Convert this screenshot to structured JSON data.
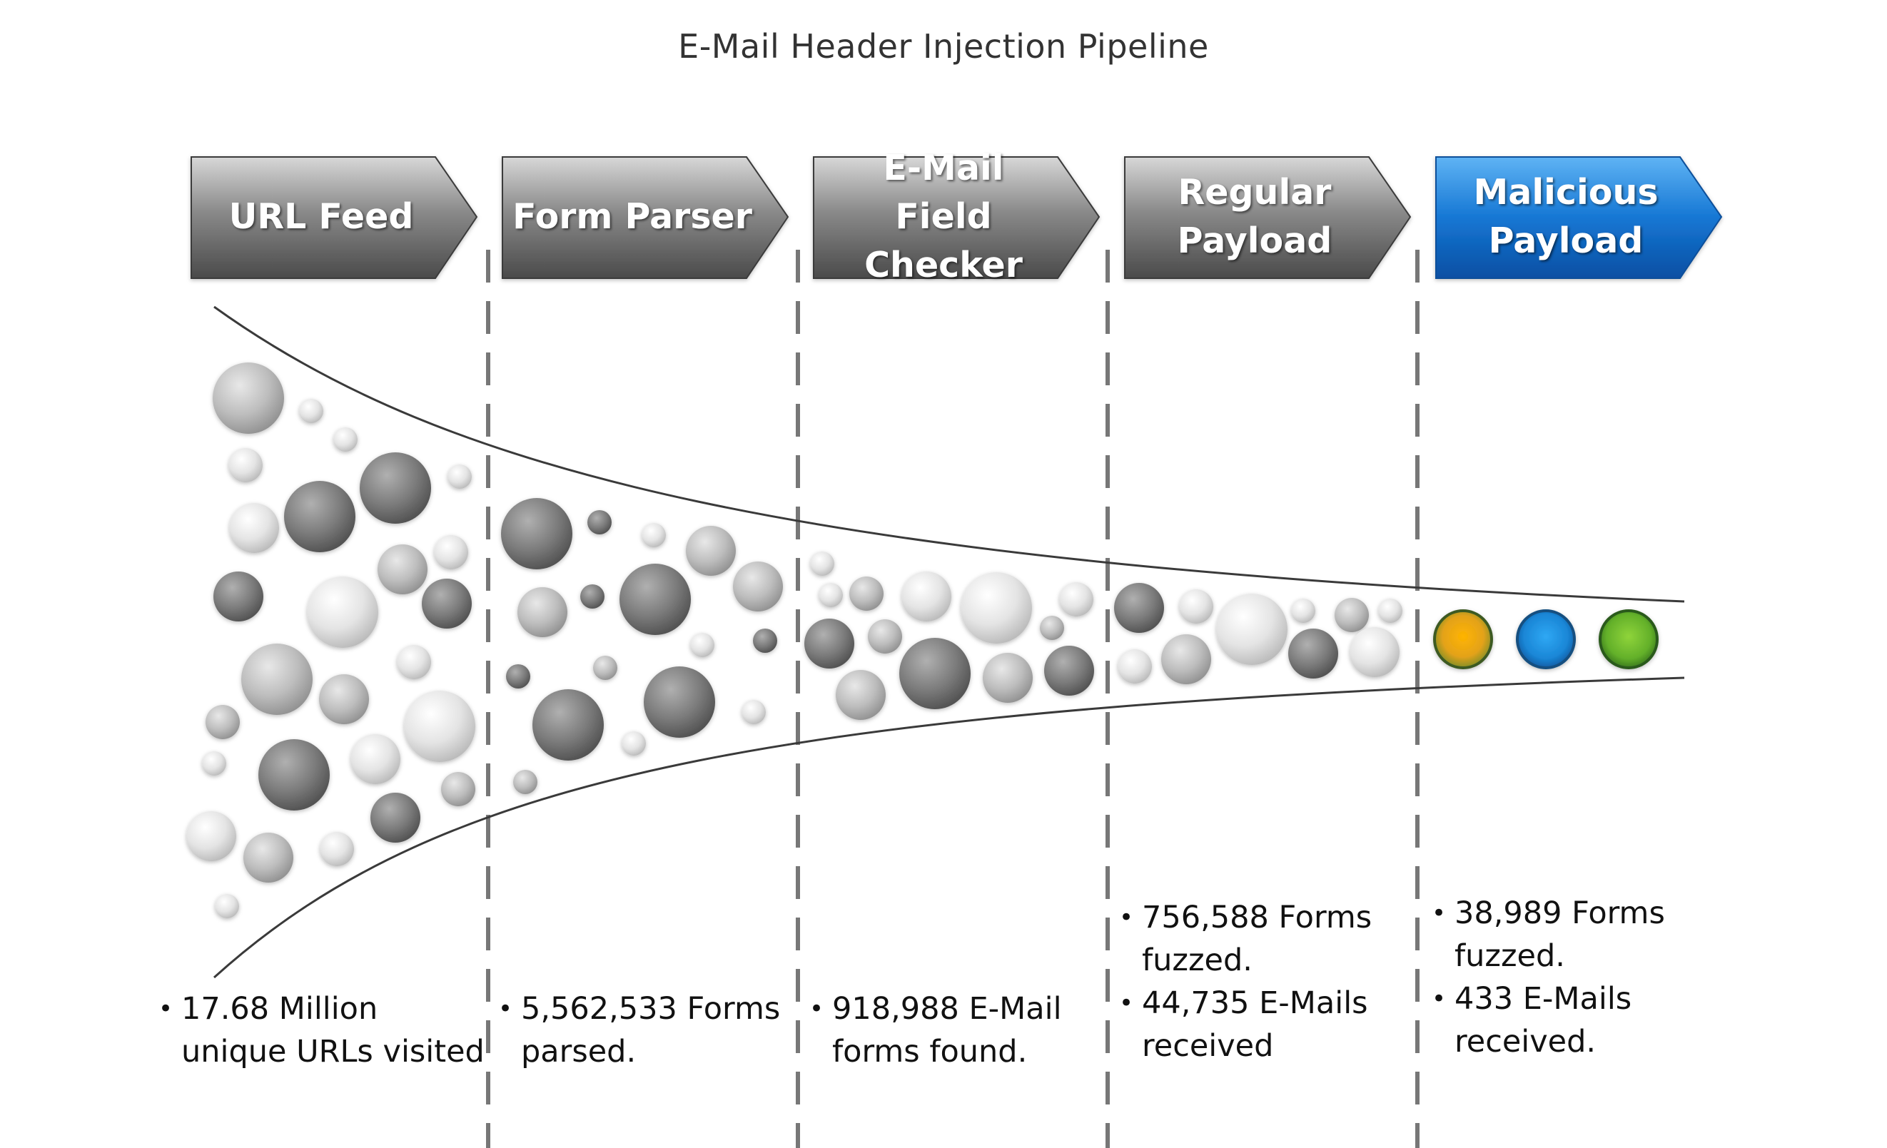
{
  "title": "E-Mail Header Injection Pipeline",
  "stages": [
    {
      "label": "URL Feed",
      "color": "#6b6b6b",
      "stats": [
        "17.68 Million unique URLs visited"
      ]
    },
    {
      "label": "Form Parser",
      "color": "#6b6b6b",
      "stats": [
        "5,562,533 Forms parsed."
      ]
    },
    {
      "label": "E-Mail Field Checker",
      "color": "#6b6b6b",
      "stats": [
        "918,988 E-Mail forms found."
      ]
    },
    {
      "label": "Regular Payload",
      "color": "#6b6b6b",
      "stats": [
        "756,588 Forms fuzzed.",
        "44,735 E-Mails received"
      ]
    },
    {
      "label": "Malicious Payload",
      "color": "#1a7fd6",
      "stats": [
        "38,989 Forms fuzzed.",
        "433 E-Mails received."
      ]
    }
  ],
  "final_items": [
    {
      "name": "orange",
      "color": "#e3a21a"
    },
    {
      "name": "blue",
      "color": "#1e90d8"
    },
    {
      "name": "green",
      "color": "#6cbf2e"
    }
  ]
}
